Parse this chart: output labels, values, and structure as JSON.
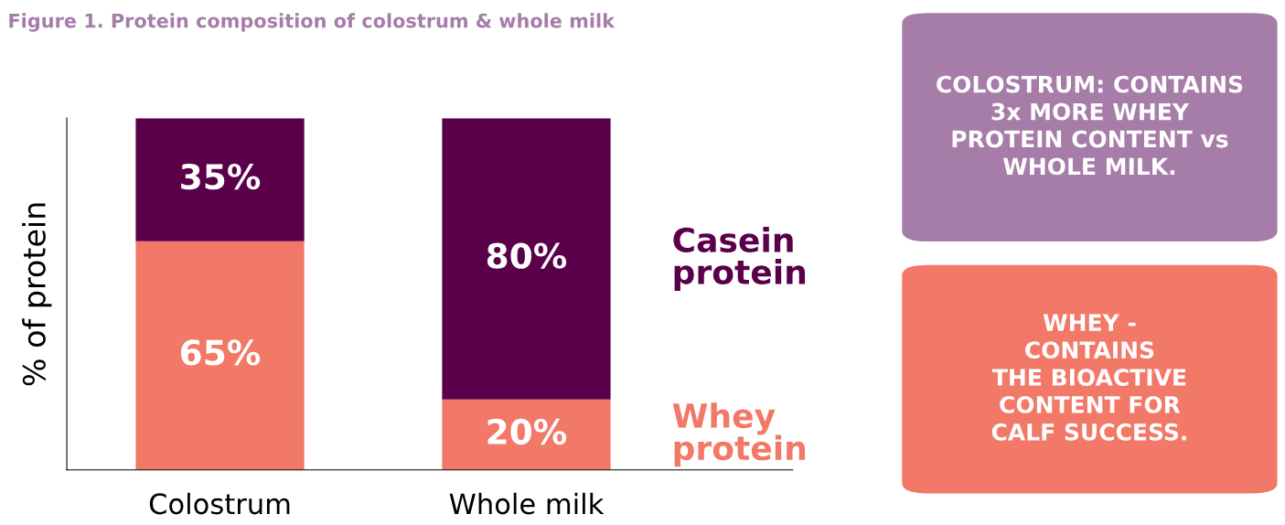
{
  "chart_data": {
    "type": "bar",
    "stacked": true,
    "title": "Figure 1. Protein composition of colostrum & whole milk",
    "ylabel": "% of protein",
    "categories": [
      "Colostrum",
      "Whole milk"
    ],
    "series": [
      {
        "name": "Whey protein",
        "color": "#f27867",
        "values": [
          65,
          20
        ],
        "value_labels": [
          "65%",
          "20%"
        ]
      },
      {
        "name": "Casein protein",
        "color": "#5a004a",
        "values": [
          35,
          80
        ],
        "value_labels": [
          "35%",
          "80%"
        ]
      }
    ],
    "legend": false,
    "grid": false,
    "annotations": [
      "COLOSTRUM: CONTAINS\n3x MORE WHEY\nPROTEIN CONTENT vs\nWHOLE MILK.",
      "WHEY -\nCONTAINS\nTHE BIOACTIVE\nCONTENT FOR\nCALF SUCCESS."
    ]
  }
}
